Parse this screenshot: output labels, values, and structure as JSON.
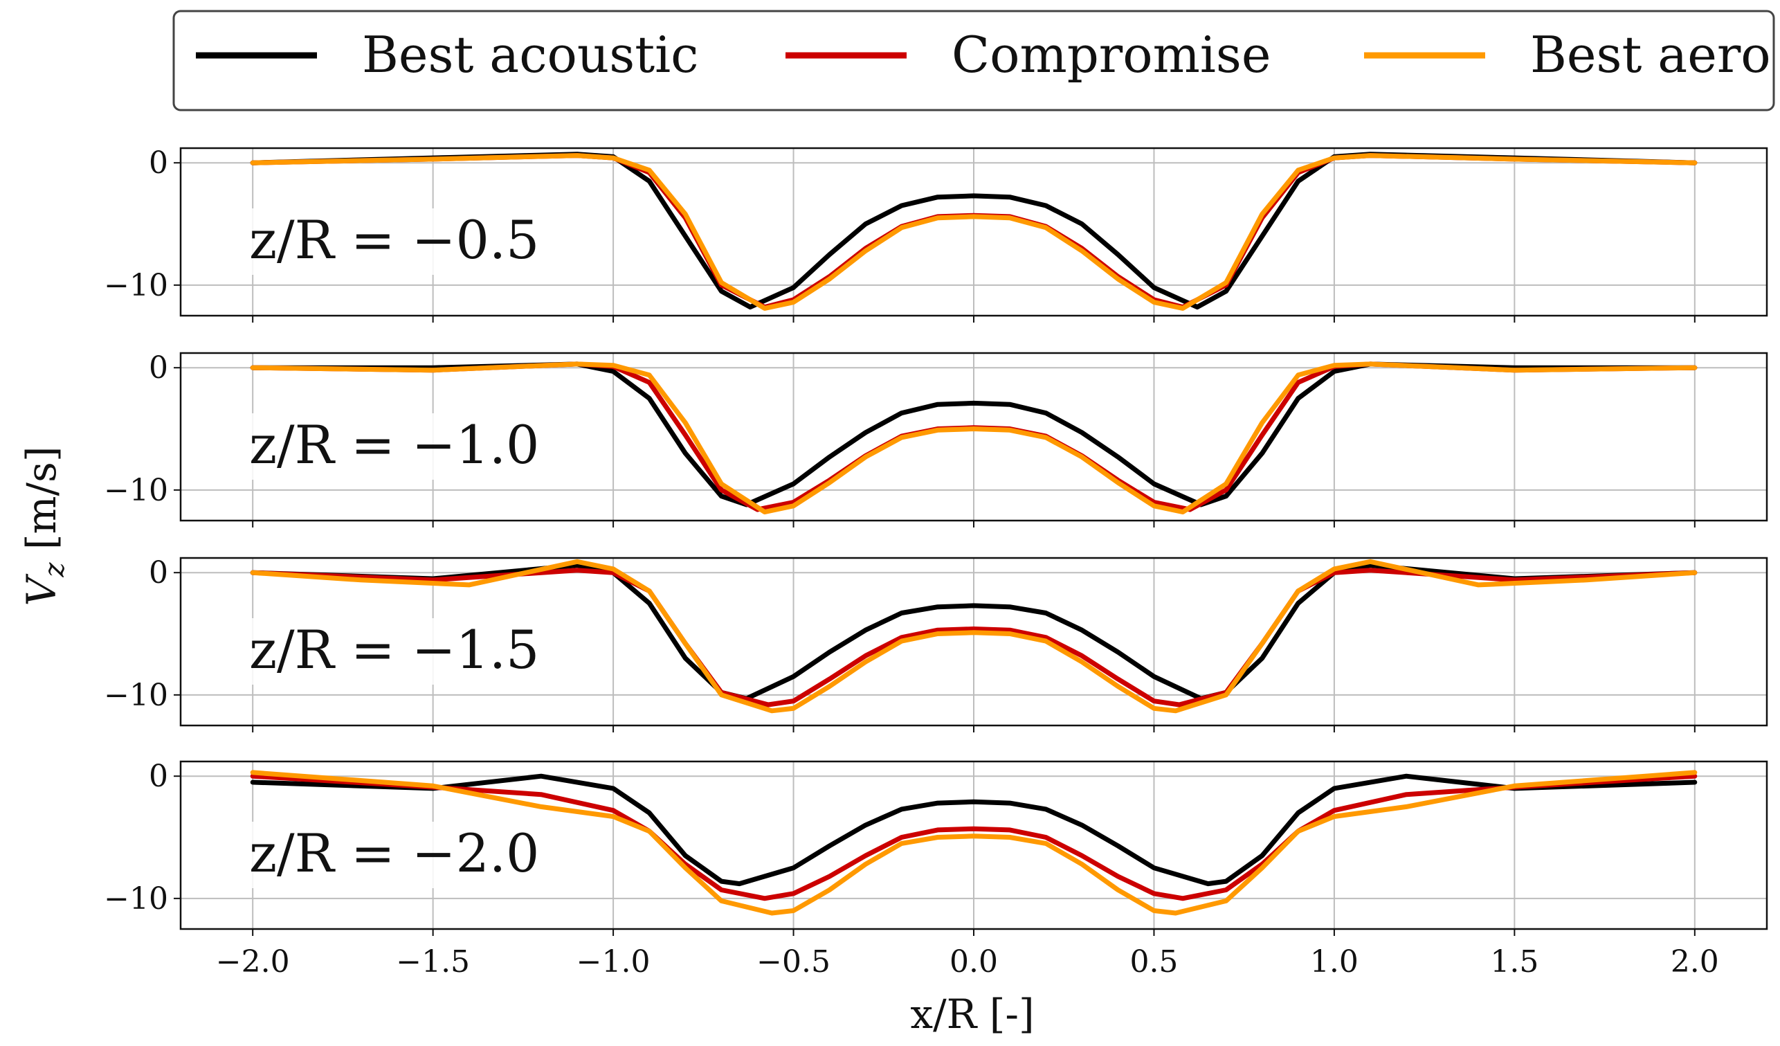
{
  "chart_data": {
    "type": "line",
    "xlabel": "x/R [-]",
    "ylabel": "V_z [m/s]",
    "xlim": [
      -2.2,
      2.2
    ],
    "ylim": [
      -12.5,
      1.2
    ],
    "xticks": [
      -2.0,
      -1.5,
      -1.0,
      -0.5,
      0.0,
      0.5,
      1.0,
      1.5,
      2.0
    ],
    "xtick_labels": [
      "−2.0",
      "−1.5",
      "−1.0",
      "−0.5",
      "0.0",
      "0.5",
      "1.0",
      "1.5",
      "2.0"
    ],
    "yticks": [
      0,
      -10
    ],
    "ytick_labels": [
      "0",
      "−10"
    ],
    "grid": true,
    "legend": {
      "placement": "top",
      "entries": [
        {
          "name": "Best acoustic",
          "color": "#000000"
        },
        {
          "name": "Compromise",
          "color": "#cc0000"
        },
        {
          "name": "Best aero",
          "color": "#ff9900"
        }
      ]
    },
    "panels": [
      {
        "label": "z/R = −0.5",
        "series": [
          {
            "name": "Best acoustic",
            "x": [
              -2.0,
              -1.5,
              -1.1,
              -1.0,
              -0.9,
              -0.8,
              -0.7,
              -0.62,
              -0.5,
              -0.4,
              -0.3,
              -0.2,
              -0.1,
              0.0,
              0.1,
              0.2,
              0.3,
              0.4,
              0.5,
              0.62,
              0.7,
              0.8,
              0.9,
              1.0,
              1.1,
              1.5,
              2.0
            ],
            "y": [
              0.0,
              0.4,
              0.7,
              0.5,
              -1.5,
              -6.0,
              -10.5,
              -11.8,
              -10.2,
              -7.5,
              -5.0,
              -3.5,
              -2.8,
              -2.7,
              -2.8,
              -3.5,
              -5.0,
              -7.5,
              -10.2,
              -11.8,
              -10.5,
              -6.0,
              -1.5,
              0.5,
              0.7,
              0.4,
              0.0
            ]
          },
          {
            "name": "Compromise",
            "x": [
              -2.0,
              -1.5,
              -1.1,
              -1.0,
              -0.9,
              -0.8,
              -0.7,
              -0.58,
              -0.5,
              -0.4,
              -0.3,
              -0.2,
              -0.1,
              0.0,
              0.1,
              0.2,
              0.3,
              0.4,
              0.5,
              0.58,
              0.7,
              0.8,
              0.9,
              1.0,
              1.1,
              1.5,
              2.0
            ],
            "y": [
              0.0,
              0.3,
              0.6,
              0.4,
              -0.8,
              -4.5,
              -10.0,
              -11.8,
              -11.2,
              -9.3,
              -7.0,
              -5.2,
              -4.4,
              -4.3,
              -4.4,
              -5.2,
              -7.0,
              -9.3,
              -11.2,
              -11.8,
              -10.0,
              -4.5,
              -0.8,
              0.4,
              0.6,
              0.3,
              0.0
            ]
          },
          {
            "name": "Best aero",
            "x": [
              -2.0,
              -1.5,
              -1.1,
              -1.0,
              -0.9,
              -0.8,
              -0.7,
              -0.58,
              -0.5,
              -0.4,
              -0.3,
              -0.2,
              -0.1,
              0.0,
              0.1,
              0.2,
              0.3,
              0.4,
              0.5,
              0.58,
              0.7,
              0.8,
              0.9,
              1.0,
              1.1,
              1.5,
              2.0
            ],
            "y": [
              0.0,
              0.3,
              0.6,
              0.4,
              -0.6,
              -4.2,
              -9.8,
              -11.9,
              -11.4,
              -9.5,
              -7.2,
              -5.3,
              -4.5,
              -4.4,
              -4.5,
              -5.3,
              -7.2,
              -9.5,
              -11.4,
              -11.9,
              -9.8,
              -4.2,
              -0.6,
              0.4,
              0.6,
              0.3,
              0.0
            ]
          }
        ]
      },
      {
        "label": "z/R = −1.0",
        "series": [
          {
            "name": "Best acoustic",
            "x": [
              -2.0,
              -1.5,
              -1.1,
              -1.0,
              -0.9,
              -0.8,
              -0.7,
              -0.63,
              -0.5,
              -0.4,
              -0.3,
              -0.2,
              -0.1,
              0.0,
              0.1,
              0.2,
              0.3,
              0.4,
              0.5,
              0.63,
              0.7,
              0.8,
              0.9,
              1.0,
              1.1,
              1.5,
              2.0
            ],
            "y": [
              0.0,
              0.0,
              0.3,
              -0.3,
              -2.5,
              -7.0,
              -10.5,
              -11.2,
              -9.5,
              -7.3,
              -5.3,
              -3.7,
              -3.0,
              -2.9,
              -3.0,
              -3.7,
              -5.3,
              -7.3,
              -9.5,
              -11.2,
              -10.5,
              -7.0,
              -2.5,
              -0.3,
              0.3,
              0.0,
              0.0
            ]
          },
          {
            "name": "Compromise",
            "x": [
              -2.0,
              -1.5,
              -1.1,
              -1.0,
              -0.9,
              -0.8,
              -0.7,
              -0.6,
              -0.5,
              -0.4,
              -0.3,
              -0.2,
              -0.1,
              0.0,
              0.1,
              0.2,
              0.3,
              0.4,
              0.5,
              0.6,
              0.7,
              0.8,
              0.9,
              1.0,
              1.1,
              1.5,
              2.0
            ],
            "y": [
              0.0,
              -0.2,
              0.3,
              0.1,
              -1.2,
              -5.5,
              -10.0,
              -11.6,
              -11.0,
              -9.2,
              -7.2,
              -5.6,
              -5.0,
              -4.9,
              -5.0,
              -5.6,
              -7.2,
              -9.2,
              -11.0,
              -11.6,
              -10.0,
              -5.5,
              -1.2,
              0.1,
              0.3,
              -0.2,
              0.0
            ]
          },
          {
            "name": "Best aero",
            "x": [
              -2.0,
              -1.5,
              -1.1,
              -1.0,
              -0.9,
              -0.8,
              -0.7,
              -0.58,
              -0.5,
              -0.4,
              -0.3,
              -0.2,
              -0.1,
              0.0,
              0.1,
              0.2,
              0.3,
              0.4,
              0.5,
              0.58,
              0.7,
              0.8,
              0.9,
              1.0,
              1.1,
              1.5,
              2.0
            ],
            "y": [
              0.0,
              -0.2,
              0.3,
              0.2,
              -0.6,
              -4.5,
              -9.5,
              -11.8,
              -11.3,
              -9.4,
              -7.3,
              -5.7,
              -5.1,
              -5.0,
              -5.1,
              -5.7,
              -7.3,
              -9.4,
              -11.3,
              -11.8,
              -9.5,
              -4.5,
              -0.6,
              0.2,
              0.3,
              -0.2,
              0.0
            ]
          }
        ]
      },
      {
        "label": "z/R = −1.5",
        "series": [
          {
            "name": "Best acoustic",
            "x": [
              -2.0,
              -1.5,
              -1.1,
              -1.0,
              -0.9,
              -0.8,
              -0.7,
              -0.63,
              -0.5,
              -0.4,
              -0.3,
              -0.2,
              -0.1,
              0.0,
              0.1,
              0.2,
              0.3,
              0.4,
              0.5,
              0.63,
              0.7,
              0.8,
              0.9,
              1.0,
              1.1,
              1.5,
              2.0
            ],
            "y": [
              0.0,
              -0.5,
              0.6,
              0.0,
              -2.5,
              -7.0,
              -9.8,
              -10.3,
              -8.5,
              -6.5,
              -4.7,
              -3.3,
              -2.8,
              -2.7,
              -2.8,
              -3.3,
              -4.7,
              -6.5,
              -8.5,
              -10.3,
              -9.8,
              -7.0,
              -2.5,
              0.0,
              0.6,
              -0.5,
              0.0
            ]
          },
          {
            "name": "Compromise",
            "x": [
              -2.0,
              -1.5,
              -1.1,
              -1.0,
              -0.9,
              -0.8,
              -0.7,
              -0.57,
              -0.5,
              -0.4,
              -0.3,
              -0.2,
              -0.1,
              0.0,
              0.1,
              0.2,
              0.3,
              0.4,
              0.5,
              0.57,
              0.7,
              0.8,
              0.9,
              1.0,
              1.1,
              1.5,
              2.0
            ],
            "y": [
              0.0,
              -0.6,
              0.2,
              0.0,
              -1.5,
              -5.8,
              -9.8,
              -10.8,
              -10.5,
              -8.7,
              -6.8,
              -5.3,
              -4.7,
              -4.6,
              -4.7,
              -5.3,
              -6.8,
              -8.7,
              -10.5,
              -10.8,
              -9.8,
              -5.8,
              -1.5,
              0.0,
              0.2,
              -0.6,
              0.0
            ]
          },
          {
            "name": "Best aero",
            "x": [
              -2.0,
              -1.7,
              -1.4,
              -1.1,
              -1.0,
              -0.9,
              -0.8,
              -0.7,
              -0.56,
              -0.5,
              -0.4,
              -0.3,
              -0.2,
              -0.1,
              0.0,
              0.1,
              0.2,
              0.3,
              0.4,
              0.5,
              0.56,
              0.7,
              0.8,
              0.9,
              1.0,
              1.1,
              1.4,
              1.7,
              2.0
            ],
            "y": [
              0.0,
              -0.6,
              -1.0,
              0.9,
              0.3,
              -1.5,
              -5.8,
              -10.0,
              -11.3,
              -11.1,
              -9.3,
              -7.3,
              -5.6,
              -5.0,
              -4.9,
              -5.0,
              -5.6,
              -7.3,
              -9.3,
              -11.1,
              -11.3,
              -10.0,
              -5.8,
              -1.5,
              0.3,
              0.9,
              -1.0,
              -0.6,
              0.0
            ]
          }
        ]
      },
      {
        "label": "z/R = −2.0",
        "series": [
          {
            "name": "Best acoustic",
            "x": [
              -2.0,
              -1.5,
              -1.2,
              -1.0,
              -0.9,
              -0.8,
              -0.7,
              -0.65,
              -0.5,
              -0.4,
              -0.3,
              -0.2,
              -0.1,
              0.0,
              0.1,
              0.2,
              0.3,
              0.4,
              0.5,
              0.65,
              0.7,
              0.8,
              0.9,
              1.0,
              1.2,
              1.5,
              2.0
            ],
            "y": [
              -0.5,
              -1.0,
              0.0,
              -1.0,
              -3.0,
              -6.5,
              -8.6,
              -8.8,
              -7.5,
              -5.7,
              -4.0,
              -2.7,
              -2.2,
              -2.1,
              -2.2,
              -2.7,
              -4.0,
              -5.7,
              -7.5,
              -8.8,
              -8.6,
              -6.5,
              -3.0,
              -1.0,
              0.0,
              -1.0,
              -0.5
            ]
          },
          {
            "name": "Compromise",
            "x": [
              -2.0,
              -1.5,
              -1.2,
              -1.0,
              -0.9,
              -0.8,
              -0.7,
              -0.58,
              -0.5,
              -0.4,
              -0.3,
              -0.2,
              -0.1,
              0.0,
              0.1,
              0.2,
              0.3,
              0.4,
              0.5,
              0.58,
              0.7,
              0.8,
              0.9,
              1.0,
              1.2,
              1.5,
              2.0
            ],
            "y": [
              0.0,
              -0.9,
              -1.5,
              -2.8,
              -4.5,
              -7.2,
              -9.3,
              -10.0,
              -9.6,
              -8.2,
              -6.5,
              -5.0,
              -4.4,
              -4.3,
              -4.4,
              -5.0,
              -6.5,
              -8.2,
              -9.6,
              -10.0,
              -9.3,
              -7.2,
              -4.5,
              -2.8,
              -1.5,
              -0.9,
              0.0
            ]
          },
          {
            "name": "Best aero",
            "x": [
              -2.0,
              -1.5,
              -1.2,
              -1.0,
              -0.9,
              -0.8,
              -0.7,
              -0.56,
              -0.5,
              -0.4,
              -0.3,
              -0.2,
              -0.1,
              0.0,
              0.1,
              0.2,
              0.3,
              0.4,
              0.5,
              0.56,
              0.7,
              0.8,
              0.9,
              1.0,
              1.2,
              1.5,
              2.0
            ],
            "y": [
              0.3,
              -0.8,
              -2.5,
              -3.3,
              -4.5,
              -7.5,
              -10.2,
              -11.2,
              -11.0,
              -9.3,
              -7.2,
              -5.5,
              -5.0,
              -4.9,
              -5.0,
              -5.5,
              -7.2,
              -9.3,
              -11.0,
              -11.2,
              -10.2,
              -7.5,
              -4.5,
              -3.3,
              -2.5,
              -0.8,
              0.3
            ]
          }
        ]
      }
    ]
  }
}
